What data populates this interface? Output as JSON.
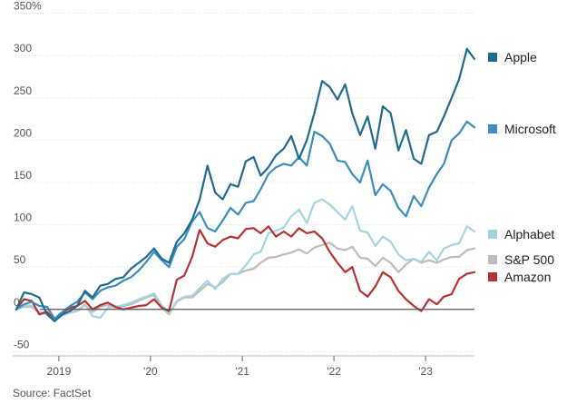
{
  "chart_data": {
    "type": "line",
    "title": "",
    "xlabel": "",
    "ylabel": "",
    "y_unit_suffix": "%",
    "ylim": [
      -55,
      355
    ],
    "yticks": [
      350,
      300,
      250,
      200,
      150,
      100,
      50,
      0,
      -50
    ],
    "ytick_labels": [
      "350%",
      "300",
      "250",
      "200",
      "150",
      "100",
      "50",
      "0",
      "-50"
    ],
    "xlim": [
      "2018-07-01",
      "2023-07-15"
    ],
    "xticks": [
      {
        "date": "2019-01-01",
        "label": "2019"
      },
      {
        "date": "2020-01-01",
        "label": "'20"
      },
      {
        "date": "2021-01-01",
        "label": "'21"
      },
      {
        "date": "2022-01-01",
        "label": "'22"
      },
      {
        "date": "2023-01-01",
        "label": "'23"
      }
    ],
    "grid": "horizontal",
    "legend_position": "right",
    "dates": [
      "2018-07",
      "2018-08",
      "2018-09",
      "2018-10",
      "2018-11",
      "2018-12",
      "2019-01",
      "2019-02",
      "2019-03",
      "2019-04",
      "2019-05",
      "2019-06",
      "2019-07",
      "2019-08",
      "2019-09",
      "2019-10",
      "2019-11",
      "2019-12",
      "2020-01",
      "2020-02",
      "2020-03",
      "2020-04",
      "2020-05",
      "2020-06",
      "2020-07",
      "2020-08",
      "2020-09",
      "2020-10",
      "2020-11",
      "2020-12",
      "2021-01",
      "2021-02",
      "2021-03",
      "2021-04",
      "2021-05",
      "2021-06",
      "2021-07",
      "2021-08",
      "2021-09",
      "2021-10",
      "2021-11",
      "2021-12",
      "2022-01",
      "2022-02",
      "2022-03",
      "2022-04",
      "2022-05",
      "2022-06",
      "2022-07",
      "2022-08",
      "2022-09",
      "2022-10",
      "2022-11",
      "2022-12",
      "2023-01",
      "2023-02",
      "2023-03",
      "2023-04",
      "2023-05",
      "2023-06",
      "2023-07"
    ],
    "series": [
      {
        "name": "S&P 500",
        "color": "#bdbdbd",
        "values": [
          0,
          3,
          3,
          -4,
          -3,
          -11,
          -6,
          -4,
          -2,
          5,
          -3,
          3,
          5,
          2,
          4,
          6,
          10,
          14,
          17,
          2,
          -6,
          9,
          14,
          14,
          22,
          30,
          26,
          32,
          42,
          42,
          46,
          48,
          55,
          61,
          62,
          65,
          67,
          71,
          66,
          73,
          76,
          79,
          72,
          70,
          74,
          61,
          60,
          51,
          61,
          55,
          44,
          53,
          60,
          55,
          58,
          55,
          59,
          62,
          62,
          70,
          72
        ]
      },
      {
        "name": "Alphabet",
        "color": "#a6d4e4",
        "values": [
          0,
          5,
          4,
          -3,
          -6,
          -12,
          -7,
          -4,
          -1,
          6,
          -8,
          -10,
          2,
          3,
          5,
          8,
          12,
          15,
          19,
          5,
          -5,
          10,
          15,
          16,
          25,
          34,
          24,
          36,
          42,
          42,
          52,
          65,
          68,
          90,
          93,
          97,
          110,
          118,
          102,
          126,
          130,
          124,
          115,
          106,
          122,
          93,
          91,
          75,
          86,
          80,
          65,
          58,
          60,
          56,
          68,
          58,
          72,
          76,
          78,
          98,
          92
        ]
      },
      {
        "name": "Amazon",
        "color": "#b5332f",
        "values": [
          0,
          12,
          10,
          -6,
          -3,
          -13,
          -4,
          2,
          4,
          10,
          0,
          5,
          8,
          3,
          0,
          2,
          4,
          5,
          12,
          2,
          -2,
          35,
          40,
          62,
          94,
          78,
          74,
          82,
          86,
          84,
          95,
          96,
          90,
          98,
          86,
          92,
          86,
          96,
          90,
          92,
          84,
          68,
          55,
          44,
          50,
          22,
          15,
          27,
          44,
          38,
          22,
          12,
          4,
          -2,
          12,
          6,
          15,
          18,
          36,
          42,
          44
        ]
      },
      {
        "name": "Microsoft",
        "color": "#3b8fc0",
        "values": [
          0,
          6,
          9,
          4,
          3,
          -11,
          -3,
          4,
          9,
          20,
          12,
          22,
          26,
          28,
          34,
          38,
          46,
          56,
          68,
          58,
          50,
          74,
          83,
          104,
          115,
          96,
          92,
          105,
          120,
          112,
          126,
          128,
          142,
          160,
          168,
          172,
          170,
          180,
          170,
          210,
          205,
          196,
          176,
          174,
          160,
          150,
          176,
          135,
          148,
          140,
          120,
          110,
          134,
          122,
          144,
          160,
          172,
          200,
          208,
          222,
          215
        ]
      },
      {
        "name": "Apple",
        "color": "#1f6b92",
        "values": [
          0,
          20,
          18,
          14,
          -6,
          -14,
          -6,
          -2,
          4,
          22,
          14,
          28,
          30,
          36,
          38,
          48,
          55,
          62,
          72,
          60,
          55,
          80,
          90,
          106,
          130,
          170,
          138,
          130,
          148,
          145,
          175,
          180,
          158,
          168,
          182,
          190,
          205,
          178,
          200,
          232,
          270,
          263,
          248,
          266,
          232,
          206,
          228,
          190,
          240,
          232,
          188,
          212,
          178,
          172,
          206,
          210,
          228,
          250,
          272,
          308,
          296
        ]
      }
    ]
  },
  "source": "Source: FactSet"
}
